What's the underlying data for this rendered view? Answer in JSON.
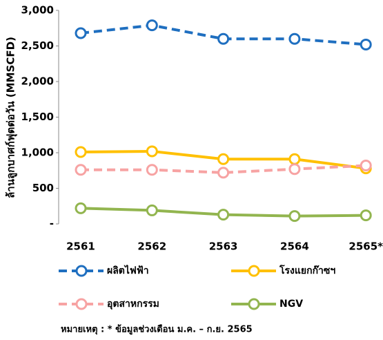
{
  "chart_data": {
    "type": "line",
    "y_label": "ล้านลูกบาศก์ฟุตต่อวัน (MMSCFD)",
    "categories": [
      "2561",
      "2562",
      "2563",
      "2564",
      "2565*"
    ],
    "series": [
      {
        "name": "ผลิตไฟฟ้า",
        "color": "#1f6fc0",
        "dashed": true,
        "values": [
          2680,
          2790,
          2600,
          2600,
          2520
        ]
      },
      {
        "name": "โรงแยกก๊าซฯ",
        "color": "#ffc000",
        "dashed": false,
        "values": [
          1010,
          1020,
          910,
          910,
          780
        ]
      },
      {
        "name": "อุตสาหกรรม",
        "color": "#f7a3a3",
        "dashed": true,
        "values": [
          760,
          760,
          720,
          770,
          820
        ]
      },
      {
        "name": "NGV",
        "color": "#92b54f",
        "dashed": false,
        "values": [
          220,
          190,
          130,
          110,
          120
        ]
      }
    ],
    "ylim": [
      0,
      3000
    ],
    "yticks": [
      {
        "value": 0,
        "label": "-"
      },
      500,
      {
        "value": 1000,
        "label": "1,000"
      },
      {
        "value": 1500,
        "label": "1,500"
      },
      {
        "value": 2000,
        "label": "2,000"
      },
      {
        "value": 2500,
        "label": "2,500"
      },
      {
        "value": 3000,
        "label": "3,000"
      }
    ],
    "note": "หมายเหตุ : * ข้อมูลช่วงเดือน ม.ค. – ก.ย. 2565"
  }
}
